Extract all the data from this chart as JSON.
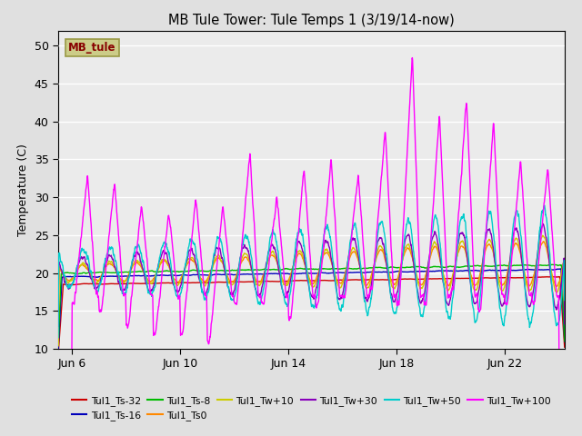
{
  "title": "MB Tule Tower: Tule Temps 1 (3/19/14-now)",
  "ylabel": "Temperature (C)",
  "xlim": [
    5.5,
    24.2
  ],
  "ylim": [
    10,
    52
  ],
  "yticks": [
    10,
    15,
    20,
    25,
    30,
    35,
    40,
    45,
    50
  ],
  "xtick_labels": [
    "Jun 6",
    "Jun 10",
    "Jun 14",
    "Jun 18",
    "Jun 22"
  ],
  "xtick_positions": [
    6,
    10,
    14,
    18,
    22
  ],
  "fig_bg": "#e0e0e0",
  "plot_bg": "#ebebeb",
  "colors": {
    "ts32": "#cc0000",
    "ts16": "#0000bb",
    "ts8": "#00bb00",
    "ts0": "#ff8800",
    "tw10": "#cccc00",
    "tw30": "#8800bb",
    "tw50": "#00cccc",
    "tw100": "#ff00ff"
  },
  "legend_label": "MB_tule",
  "legend_fg": "#880000",
  "legend_bg": "#cccc88",
  "legend_edge": "#999944"
}
